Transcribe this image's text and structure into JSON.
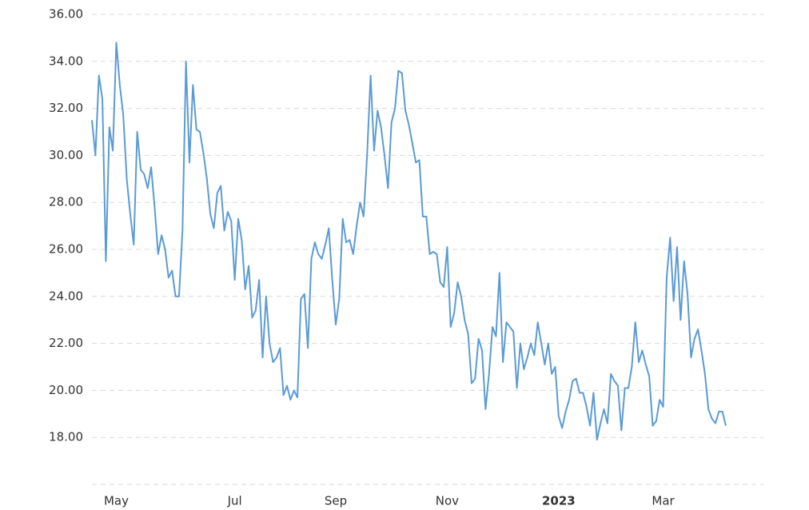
{
  "chart_data": {
    "type": "line",
    "categories": [
      null,
      null,
      null,
      null,
      null,
      null,
      null,
      "May",
      null,
      null,
      null,
      null,
      null,
      null,
      null,
      null,
      null,
      null,
      null,
      null,
      null,
      null,
      null,
      null,
      null,
      null,
      null,
      null,
      null,
      null,
      null,
      null,
      null,
      null,
      null,
      null,
      null,
      null,
      null,
      null,
      null,
      "Jul",
      null,
      null,
      null,
      null,
      null,
      null,
      null,
      null,
      null,
      null,
      null,
      null,
      null,
      null,
      null,
      null,
      null,
      null,
      null,
      null,
      null,
      null,
      null,
      null,
      null,
      null,
      null,
      null,
      "Sep",
      null,
      null,
      null,
      null,
      null,
      null,
      null,
      null,
      null,
      null,
      null,
      null,
      null,
      null,
      null,
      null,
      null,
      null,
      null,
      null,
      null,
      null,
      null,
      null,
      null,
      null,
      null,
      null,
      null,
      null,
      null,
      "Nov",
      null,
      null,
      null,
      null,
      null,
      null,
      null,
      null,
      null,
      null,
      null,
      null,
      null,
      null,
      null,
      null,
      null,
      null,
      null,
      null,
      null,
      null,
      null,
      null,
      null,
      null,
      null,
      null,
      null,
      null,
      null,
      "2023",
      null,
      null,
      null,
      null,
      null,
      null,
      null,
      null,
      null,
      null,
      null,
      null,
      null,
      null,
      null,
      null,
      null,
      null,
      null,
      null,
      null,
      null,
      null,
      null,
      null,
      null,
      null,
      null,
      null,
      "Mar",
      null,
      null,
      null,
      null,
      null,
      null,
      null,
      null,
      null,
      null,
      null,
      null,
      null,
      null,
      null,
      null,
      null,
      null
    ],
    "values": [
      31.5,
      30.0,
      33.4,
      32.4,
      25.5,
      31.2,
      30.2,
      34.8,
      33.0,
      31.7,
      29.0,
      27.5,
      26.2,
      31.0,
      29.4,
      29.2,
      28.6,
      29.5,
      27.8,
      25.8,
      26.6,
      26.0,
      24.8,
      25.1,
      24.0,
      24.0,
      26.8,
      34.0,
      29.7,
      33.0,
      31.1,
      31.0,
      30.1,
      29.0,
      27.5,
      26.9,
      28.4,
      28.7,
      26.8,
      27.6,
      27.2,
      24.7,
      27.3,
      26.4,
      24.3,
      25.3,
      23.1,
      23.4,
      24.7,
      21.4,
      24.0,
      22.0,
      21.2,
      21.4,
      21.8,
      19.8,
      20.2,
      19.6,
      20.0,
      19.7,
      23.9,
      24.1,
      21.8,
      25.6,
      26.3,
      25.8,
      25.6,
      26.2,
      26.9,
      24.7,
      22.8,
      23.9,
      27.3,
      26.3,
      26.4,
      25.8,
      27.0,
      28.0,
      27.4,
      30.0,
      33.4,
      30.2,
      31.9,
      31.2,
      30.0,
      28.6,
      31.4,
      32.0,
      33.6,
      33.5,
      31.9,
      31.3,
      30.5,
      29.7,
      29.8,
      27.4,
      27.4,
      25.8,
      25.9,
      25.8,
      24.6,
      24.4,
      26.1,
      22.7,
      23.3,
      24.6,
      24.0,
      23.0,
      22.4,
      20.3,
      20.5,
      22.2,
      21.7,
      19.2,
      20.7,
      22.7,
      22.3,
      25.0,
      21.2,
      22.9,
      22.7,
      22.5,
      20.1,
      22.0,
      20.9,
      21.4,
      22.0,
      21.5,
      22.9,
      22.0,
      21.1,
      22.0,
      20.7,
      21.0,
      18.9,
      18.4,
      19.1,
      19.6,
      20.4,
      20.5,
      19.9,
      19.9,
      19.3,
      18.5,
      19.9,
      17.9,
      18.6,
      19.2,
      18.6,
      20.7,
      20.4,
      20.2,
      18.3,
      20.1,
      20.1,
      21.0,
      22.9,
      21.2,
      21.7,
      21.1,
      20.6,
      18.5,
      18.7,
      19.6,
      19.3,
      24.8,
      26.5,
      23.8,
      26.1,
      23.0,
      25.5,
      24.1,
      21.4,
      22.2,
      22.6,
      21.7,
      20.7,
      19.2,
      18.8,
      18.6,
      19.1,
      19.1,
      18.5
    ],
    "color": "#5b9bd5",
    "ylim": [
      16,
      36
    ],
    "yticks": [
      {
        "value": 18,
        "label": "18.00"
      },
      {
        "value": 20,
        "label": "20.00"
      },
      {
        "value": 22,
        "label": "22.00"
      },
      {
        "value": 24,
        "label": "24.00"
      },
      {
        "value": 26,
        "label": "26.00"
      },
      {
        "value": 28,
        "label": "28.00"
      },
      {
        "value": 30,
        "label": "30.00"
      },
      {
        "value": 32,
        "label": "32.00"
      },
      {
        "value": 34,
        "label": "34.00"
      },
      {
        "value": 36,
        "label": "36.00"
      }
    ],
    "grid": true
  }
}
